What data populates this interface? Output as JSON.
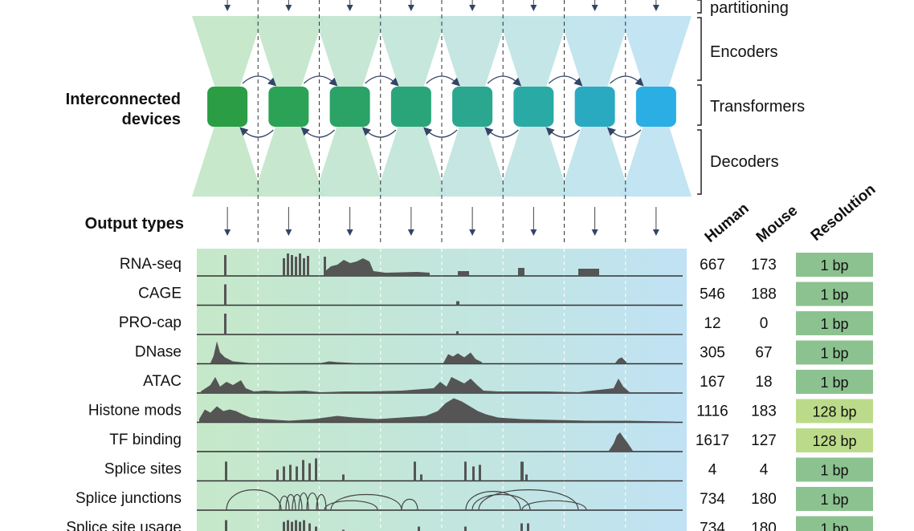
{
  "left_labels": {
    "interconnected_line1": "Interconnected",
    "interconnected_line2": "devices",
    "output_types": "Output types"
  },
  "stage_labels": {
    "partitioning": "partitioning",
    "encoders": "Encoders",
    "transformers": "Transformers",
    "decoders": "Decoders"
  },
  "column_headers": {
    "human": "Human",
    "mouse": "Mouse",
    "resolution": "Resolution"
  },
  "devices": [
    {
      "color": "#2a9d45"
    },
    {
      "color": "#2ba255"
    },
    {
      "color": "#2ba266"
    },
    {
      "color": "#2aa57a"
    },
    {
      "color": "#2aa78e"
    },
    {
      "color": "#2aaaa5"
    },
    {
      "color": "#2aaac0"
    },
    {
      "color": "#2aaee3"
    }
  ],
  "colors": {
    "res_1bp": "#8cc28f",
    "res_128bp": "#bcdb8a",
    "track_fill": "#555555",
    "arrow": "#334466"
  },
  "rows": [
    {
      "name": "RNA-seq",
      "human": "667",
      "mouse": "173",
      "resolution": "1 bp",
      "res_kind": "1bp"
    },
    {
      "name": "CAGE",
      "human": "546",
      "mouse": "188",
      "resolution": "1 bp",
      "res_kind": "1bp"
    },
    {
      "name": "PRO-cap",
      "human": "12",
      "mouse": "0",
      "resolution": "1 bp",
      "res_kind": "1bp"
    },
    {
      "name": "DNase",
      "human": "305",
      "mouse": "67",
      "resolution": "1 bp",
      "res_kind": "1bp"
    },
    {
      "name": "ATAC",
      "human": "167",
      "mouse": "18",
      "resolution": "1 bp",
      "res_kind": "1bp"
    },
    {
      "name": "Histone mods",
      "human": "1116",
      "mouse": "183",
      "resolution": "128 bp",
      "res_kind": "128bp"
    },
    {
      "name": "TF binding",
      "human": "1617",
      "mouse": "127",
      "resolution": "128 bp",
      "res_kind": "128bp"
    },
    {
      "name": "Splice sites",
      "human": "4",
      "mouse": "4",
      "resolution": "1 bp",
      "res_kind": "1bp"
    },
    {
      "name": "Splice junctions",
      "human": "734",
      "mouse": "180",
      "resolution": "1 bp",
      "res_kind": "1bp"
    },
    {
      "name": "Splice site usage",
      "human": "734",
      "mouse": "180",
      "resolution": "1 bp",
      "res_kind": "1bp"
    }
  ]
}
